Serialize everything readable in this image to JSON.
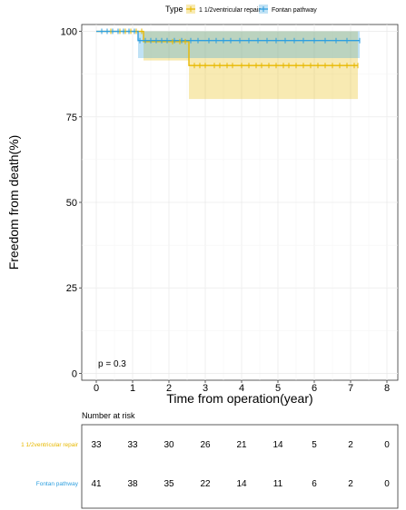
{
  "chart_data": {
    "type": "line",
    "subtype": "kaplan-meier survival curve",
    "xlabel": "Time from operation(year)",
    "ylabel": "Freedom from death(%)",
    "xlim": [
      -0.4,
      8.3
    ],
    "ylim": [
      -2,
      102
    ],
    "x_ticks": [
      0,
      1,
      2,
      3,
      4,
      5,
      6,
      7,
      8
    ],
    "y_ticks": [
      0,
      25,
      50,
      75,
      100
    ],
    "grid": true,
    "legend": {
      "title": "Type",
      "position": "top"
    },
    "annotation": "p = 0.3",
    "series": [
      {
        "name": "1 1/2ventricular repair",
        "color": "#E7B800",
        "steps": [
          [
            0,
            100
          ],
          [
            1.3,
            100
          ],
          [
            1.3,
            97
          ],
          [
            2.55,
            97
          ],
          [
            2.55,
            90
          ],
          [
            7.2,
            90
          ]
        ],
        "ci": [
          [
            0,
            100,
            100
          ],
          [
            1.3,
            100,
            100
          ],
          [
            1.3,
            91.5,
            100
          ],
          [
            2.55,
            91.5,
            100
          ],
          [
            2.55,
            80.2,
            100
          ],
          [
            7.2,
            80.2,
            100
          ]
        ],
        "censor_x": [
          0.4,
          0.65,
          0.8,
          0.95,
          1.1,
          1.25,
          2.1,
          2.3,
          2.45,
          2.7,
          2.85,
          3.0,
          3.25,
          3.4,
          3.6,
          3.75,
          4.0,
          4.2,
          4.4,
          4.55,
          4.75,
          4.95,
          5.15,
          5.3,
          5.5,
          5.7,
          5.9,
          6.1,
          6.3,
          6.5,
          6.7,
          6.9,
          7.1,
          7.2
        ]
      },
      {
        "name": "Fontan pathway",
        "color": "#2E9FDF",
        "steps": [
          [
            0,
            100
          ],
          [
            1.15,
            100
          ],
          [
            1.15,
            97.3
          ],
          [
            7.25,
            97.3
          ]
        ],
        "ci": [
          [
            0,
            100,
            100
          ],
          [
            1.15,
            100,
            100
          ],
          [
            1.15,
            92.2,
            100
          ],
          [
            7.25,
            92.2,
            100
          ]
        ],
        "censor_x": [
          0.15,
          0.3,
          0.45,
          0.6,
          0.75,
          0.9,
          1.05,
          1.2,
          1.35,
          1.5,
          1.65,
          1.8,
          1.95,
          2.15,
          2.35,
          2.6,
          2.8,
          3.1,
          3.3,
          3.5,
          3.7,
          3.95,
          4.2,
          4.45,
          4.7,
          4.95,
          5.2,
          5.45,
          5.7,
          6.0,
          6.3,
          6.6,
          6.9,
          7.25
        ]
      }
    ],
    "risk_table": {
      "title": "Number at risk",
      "times": [
        0,
        1,
        2,
        3,
        4,
        5,
        6,
        7,
        8
      ],
      "rows": [
        {
          "name": "1 1/2ventricular repair",
          "color": "#E7B800",
          "values": [
            "33",
            "33",
            "30",
            "26",
            "21",
            "14",
            "5",
            "2",
            "0"
          ]
        },
        {
          "name": "Fontan pathway",
          "color": "#2E9FDF",
          "values": [
            "41",
            "38",
            "35",
            "22",
            "14",
            "11",
            "6",
            "2",
            "0"
          ]
        }
      ]
    }
  }
}
